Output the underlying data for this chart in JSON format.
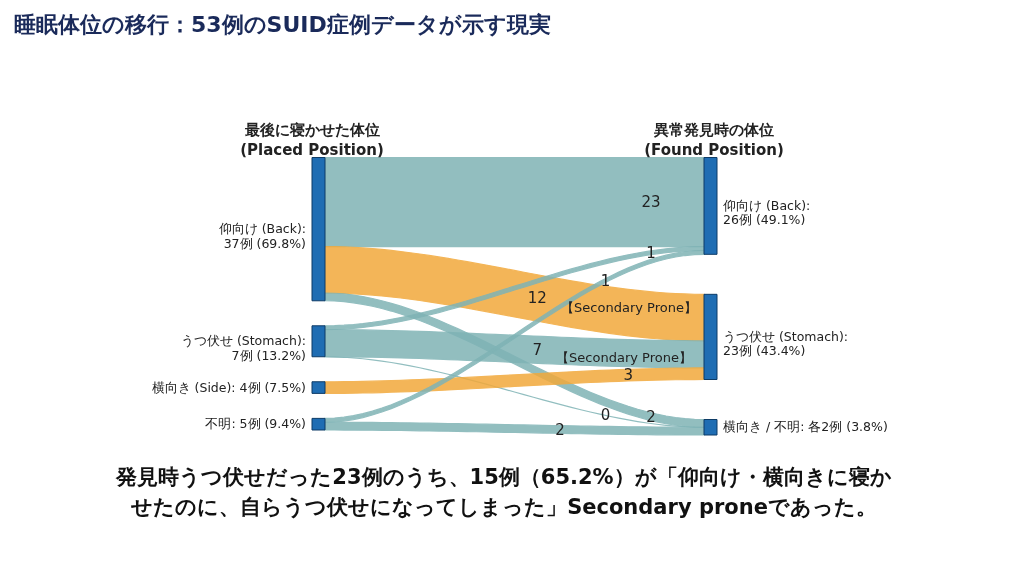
{
  "chart_data": {
    "type": "other",
    "title": "睡眠体位の移行：53例のSUID症例データが示す現実",
    "categories": [
      "仰向け (Back):\n26例 (49.1%)",
      "うつ伏せ (Stomach):\n23例 (43.4%)",
      "横向き / 不明: 各2例 (3.8%)"
    ],
    "series": [
      {
        "name": "仰向け (Back):\n37例 (69.8%)",
        "values": [
          23,
          12,
          2
        ],
        "colors": [
          "#7fb3b5",
          "#f2a93b",
          "#7fb3b5"
        ]
      },
      {
        "name": "うつ伏せ (Stomach):\n7例 (13.2%)",
        "values": [
          1,
          7,
          0
        ],
        "colors": [
          "#7fb3b5",
          "#7fb3b5",
          "#7fb3b5"
        ]
      },
      {
        "name": "横向き (Side): 4例 (7.5%)",
        "values": [
          null,
          3,
          null
        ],
        "colors": [
          null,
          "#f2a93b",
          null
        ]
      },
      {
        "name": "不明: 5例 (9.4%)",
        "values": [
          1,
          null,
          2
        ],
        "colors": [
          "#7fb3b5",
          null,
          "#7fb3b5"
        ]
      }
    ],
    "data_labels": true,
    "annotations": [
      "最後に寝かせた体位\n(Placed Position)",
      "異常発見時の体位\n(Found Position)",
      "【Secondary Prone】",
      "【Secondary Prone】",
      "発見時うつ伏せだった23例のうち、15例（65.2%）が「仰向け・横向きに寝か",
      "せたのに、自らうつ伏せになってしまった」Secondary proneであった。"
    ]
  }
}
